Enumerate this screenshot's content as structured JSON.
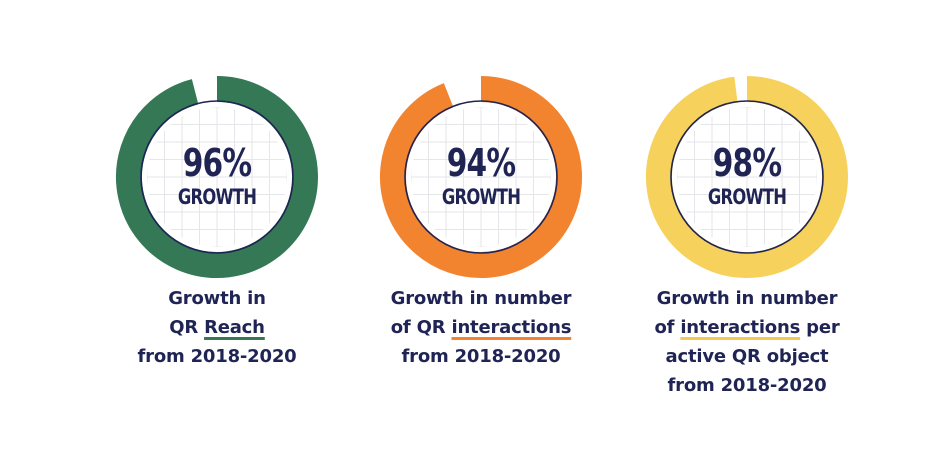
{
  "chart_data": [
    {
      "type": "pie",
      "value": 96,
      "value_text": "96%",
      "label_text": "GROWTH",
      "caption_lines": [
        {
          "before": "Growth in",
          "highlight": "",
          "after": ""
        },
        {
          "before": "QR ",
          "highlight": "Reach",
          "after": ""
        },
        {
          "before": "from 2018-2020",
          "highlight": "",
          "after": ""
        }
      ],
      "color": "#347856",
      "accent_color": "#347856"
    },
    {
      "type": "pie",
      "value": 94,
      "value_text": "94%",
      "label_text": "GROWTH",
      "caption_lines": [
        {
          "before": "Growth in number",
          "highlight": "",
          "after": ""
        },
        {
          "before": "of QR ",
          "highlight": "interactions",
          "after": ""
        },
        {
          "before": "from 2018-2020",
          "highlight": "",
          "after": ""
        }
      ],
      "color": "#f3842f",
      "accent_color": "#f3842f"
    },
    {
      "type": "pie",
      "value": 98,
      "value_text": "98%",
      "label_text": "GROWTH",
      "caption_lines": [
        {
          "before": "Growth in number",
          "highlight": "",
          "after": ""
        },
        {
          "before": "of ",
          "highlight": "interactions",
          "after": " per"
        },
        {
          "before": "active QR object",
          "highlight": "",
          "after": ""
        },
        {
          "before": "from 2018-2020",
          "highlight": "",
          "after": ""
        }
      ],
      "color": "#f6d15c",
      "accent_color": "#f5c94f"
    }
  ],
  "colors": {
    "text": "#1f2454",
    "grid": "#e4e6ea",
    "inner_ring": "#1f2454"
  }
}
